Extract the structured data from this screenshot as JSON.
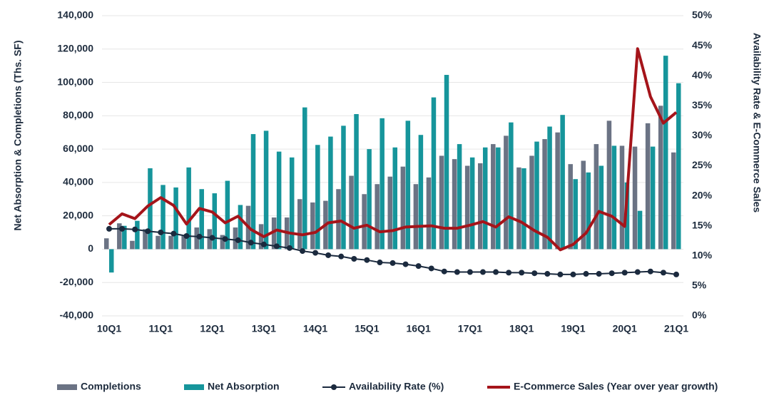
{
  "chart_data": {
    "type": "bar",
    "y_label": "Net Absorption & Completions (Ths. SF)",
    "y2_label": "Availability Rate & E-Commerce Sales",
    "categories": [
      "10Q1",
      null,
      null,
      null,
      "11Q1",
      null,
      null,
      null,
      "12Q1",
      null,
      null,
      null,
      "13Q1",
      null,
      null,
      null,
      "14Q1",
      null,
      null,
      null,
      "15Q1",
      null,
      null,
      null,
      "16Q1",
      null,
      null,
      null,
      "17Q1",
      null,
      null,
      null,
      "18Q1",
      null,
      null,
      null,
      "19Q1",
      null,
      null,
      null,
      "20Q1",
      null,
      null,
      null,
      "21Q1"
    ],
    "ylim": [
      -40000,
      140000
    ],
    "yticks": [
      {
        "value": -40000,
        "label": "-40,000"
      },
      {
        "value": -20000,
        "label": "-20,000"
      },
      0,
      {
        "value": 20000,
        "label": "20,000"
      },
      {
        "value": 40000,
        "label": "40,000"
      },
      {
        "value": 60000,
        "label": "60,000"
      },
      {
        "value": 80000,
        "label": "80,000"
      },
      {
        "value": 100000,
        "label": "100,000"
      },
      {
        "value": 120000,
        "label": "120,000"
      },
      {
        "value": 140000,
        "label": "140,000"
      }
    ],
    "y2lim": [
      0,
      50
    ],
    "y2ticks": [
      {
        "value": 0,
        "label": "0%"
      },
      {
        "value": 5,
        "label": "5%"
      },
      {
        "value": 10,
        "label": "10%"
      },
      {
        "value": 15,
        "label": "15%"
      },
      {
        "value": 20,
        "label": "20%"
      },
      {
        "value": 25,
        "label": "25%"
      },
      {
        "value": 30,
        "label": "30%"
      },
      {
        "value": 35,
        "label": "35%"
      },
      {
        "value": 40,
        "label": "40%"
      },
      {
        "value": 45,
        "label": "45%"
      },
      {
        "value": 50,
        "label": "50%"
      }
    ],
    "grid": true,
    "legend": "bottom",
    "series": [
      {
        "name": "Completions",
        "type": "bar",
        "color": "#6b7384",
        "values": [
          6500,
          15500,
          5000,
          12000,
          8000,
          8000,
          8000,
          13000,
          12000,
          8500,
          13000,
          26000,
          15000,
          19000,
          19000,
          30000,
          28000,
          29000,
          36000,
          44000,
          33000,
          39000,
          43500,
          49500,
          39000,
          43000,
          56000,
          54000,
          50000,
          51500,
          63000,
          68000,
          49000,
          56000,
          66000,
          70000,
          51000,
          53000,
          63000,
          77000,
          62000,
          61500,
          75500,
          86000,
          58000
        ]
      },
      {
        "name": "Net Absorption",
        "type": "bar",
        "color": "#16959b",
        "values": [
          -14000,
          14000,
          17000,
          48500,
          38500,
          37000,
          49000,
          36000,
          33500,
          41000,
          26500,
          69000,
          71000,
          58500,
          55000,
          85000,
          62500,
          67500,
          74000,
          81000,
          60000,
          78500,
          61000,
          77000,
          68500,
          91000,
          104500,
          63000,
          55000,
          61000,
          61000,
          76000,
          48500,
          64500,
          73500,
          80500,
          42000,
          46000,
          50000,
          62000,
          40000,
          23000,
          61500,
          116000,
          99500
        ]
      },
      {
        "name": "Availability Rate (%)",
        "type": "line",
        "axis": "y2",
        "color": "#1b2a3e",
        "marker": true,
        "values": [
          14.5,
          14.5,
          14.4,
          14.1,
          13.9,
          13.7,
          13.3,
          13.2,
          13.0,
          12.8,
          12.6,
          12.2,
          11.9,
          11.6,
          11.3,
          10.8,
          10.5,
          10.1,
          9.9,
          9.5,
          9.3,
          8.9,
          8.8,
          8.6,
          8.3,
          7.9,
          7.4,
          7.3,
          7.3,
          7.3,
          7.3,
          7.2,
          7.2,
          7.1,
          7.0,
          6.9,
          6.9,
          7.0,
          7.0,
          7.1,
          7.2,
          7.3,
          7.4,
          7.2,
          6.9
        ]
      },
      {
        "name": "E-Commerce Sales (Year over year growth)",
        "type": "line",
        "axis": "y2",
        "color": "#a5141a",
        "marker": false,
        "values": [
          15.2,
          17.0,
          16.2,
          18.3,
          19.7,
          18.4,
          15.3,
          17.9,
          17.3,
          15.5,
          16.6,
          14.4,
          13.2,
          14.3,
          13.8,
          13.5,
          13.9,
          15.5,
          15.8,
          14.6,
          15.1,
          14.0,
          14.2,
          14.8,
          14.9,
          15.0,
          14.6,
          14.6,
          15.1,
          15.7,
          14.8,
          16.5,
          15.6,
          14.2,
          13.1,
          11.0,
          11.9,
          13.8,
          17.4,
          16.6,
          14.9,
          44.5,
          36.5,
          32.1,
          33.9
        ]
      }
    ]
  }
}
